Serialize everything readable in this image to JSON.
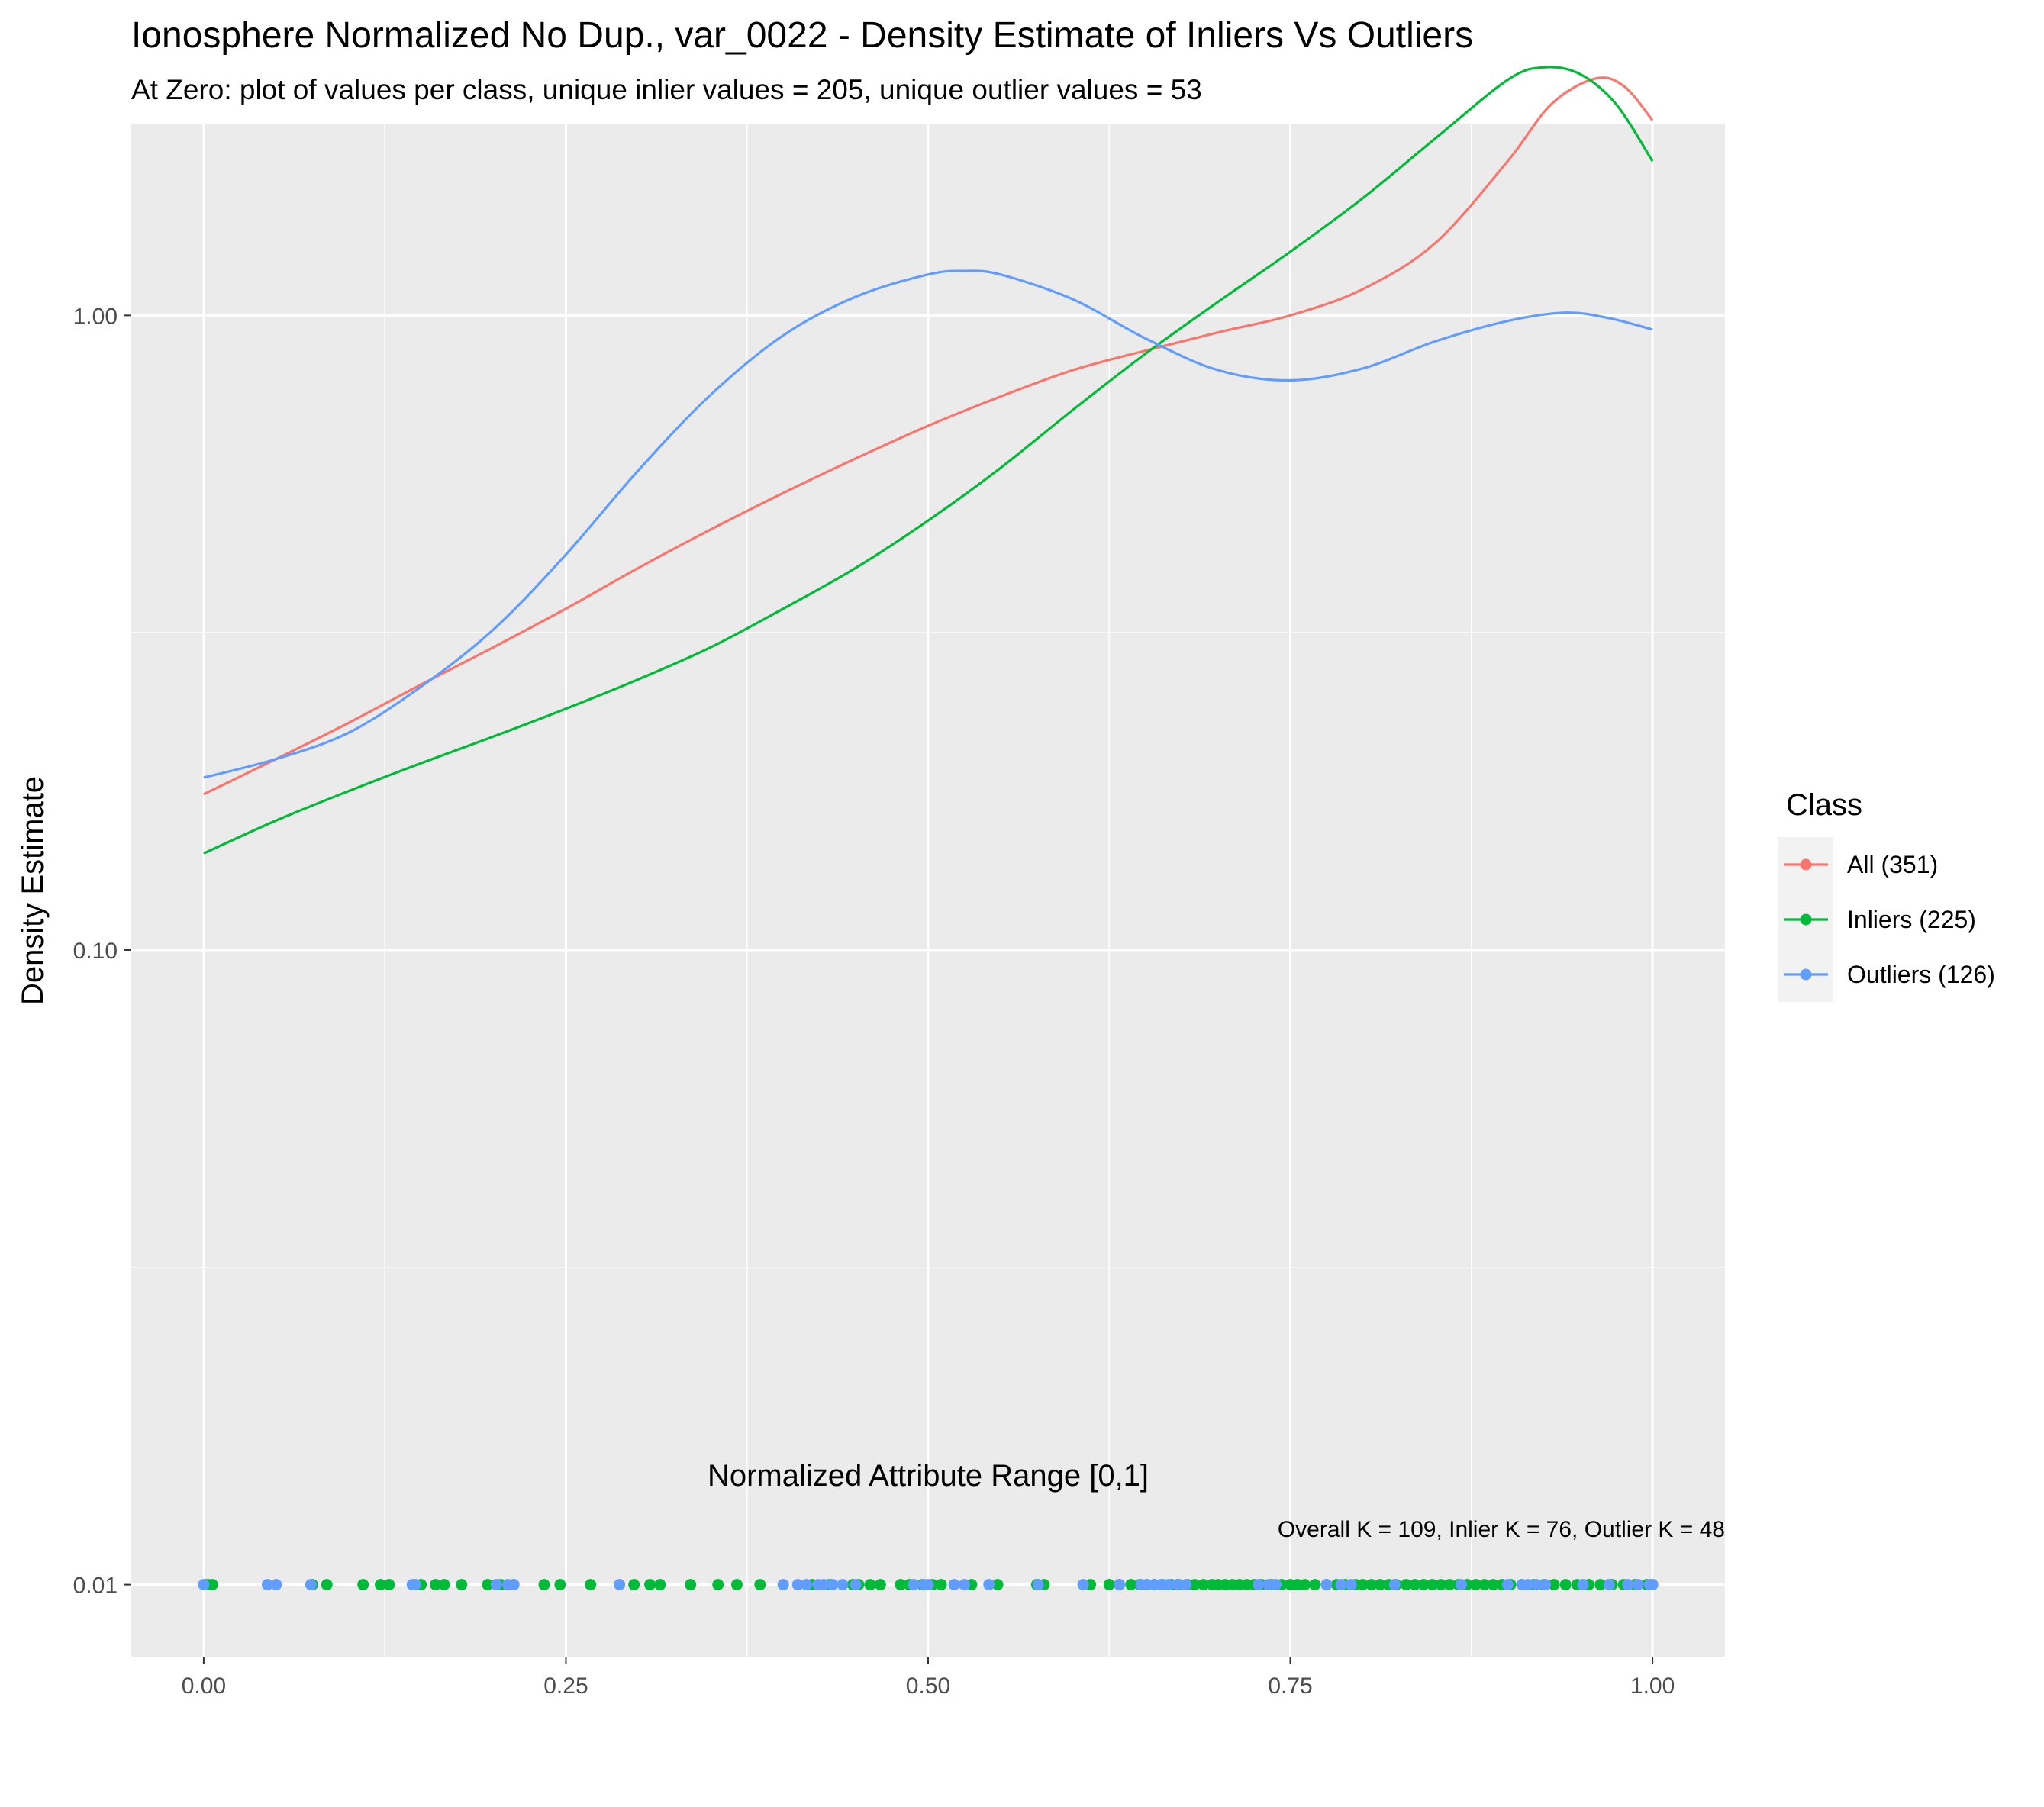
{
  "chart_data": {
    "type": "line",
    "title": "Ionosphere Normalized No Dup., var_0022 - Density Estimate of Inliers Vs Outliers",
    "subtitle": "At Zero: plot of values per class, unique inlier values = 205, unique outlier values = 53",
    "xlabel": "Normalized Attribute Range [0,1]",
    "ylabel": "Density Estimate",
    "caption": "Overall K = 109, Inlier K = 76, Outlier K = 48",
    "x_scale": "linear",
    "y_scale": "log10",
    "xlim": [
      -0.05,
      1.05
    ],
    "ylim": [
      0.0077,
      2.0
    ],
    "x_ticks": [
      0,
      0.25,
      0.5,
      0.75,
      1.0
    ],
    "x_tick_labels": [
      "0.00",
      "0.25",
      "0.50",
      "0.75",
      "1.00"
    ],
    "y_ticks": [
      0.01,
      0.1,
      1.0
    ],
    "y_tick_labels": [
      "0.01",
      "0.10",
      "1.00"
    ],
    "grid": true,
    "legend": {
      "title": "Class",
      "position": "right",
      "entries": [
        "All (351)",
        "Inliers (225)",
        "Outliers (126)"
      ]
    },
    "series": [
      {
        "name": "All (351)",
        "color": "#F8766D",
        "x": [
          0,
          0.05,
          0.1,
          0.15,
          0.2,
          0.25,
          0.3,
          0.35,
          0.4,
          0.45,
          0.5,
          0.55,
          0.6,
          0.65,
          0.7,
          0.75,
          0.8,
          0.85,
          0.9,
          0.93,
          0.96,
          0.98,
          1.0
        ],
        "y": [
          0.176,
          0.2,
          0.228,
          0.262,
          0.3,
          0.345,
          0.4,
          0.46,
          0.525,
          0.595,
          0.67,
          0.745,
          0.82,
          0.88,
          0.94,
          1.0,
          1.1,
          1.3,
          1.75,
          2.15,
          2.36,
          2.3,
          2.03
        ]
      },
      {
        "name": "Inliers (225)",
        "color": "#00BA38",
        "x": [
          0,
          0.05,
          0.1,
          0.15,
          0.2,
          0.25,
          0.3,
          0.35,
          0.4,
          0.45,
          0.5,
          0.55,
          0.6,
          0.65,
          0.7,
          0.75,
          0.8,
          0.85,
          0.9,
          0.925,
          0.95,
          0.975,
          1.0
        ],
        "y": [
          0.142,
          0.16,
          0.178,
          0.197,
          0.217,
          0.24,
          0.267,
          0.3,
          0.345,
          0.4,
          0.475,
          0.575,
          0.71,
          0.87,
          1.05,
          1.26,
          1.53,
          1.9,
          2.35,
          2.46,
          2.4,
          2.15,
          1.75
        ]
      },
      {
        "name": "Outliers (126)",
        "color": "#619CFF",
        "x": [
          0,
          0.05,
          0.1,
          0.15,
          0.2,
          0.25,
          0.3,
          0.35,
          0.4,
          0.45,
          0.5,
          0.525,
          0.55,
          0.6,
          0.65,
          0.7,
          0.75,
          0.8,
          0.85,
          0.9,
          0.94,
          0.97,
          1.0
        ],
        "y": [
          0.187,
          0.2,
          0.22,
          0.26,
          0.32,
          0.42,
          0.57,
          0.75,
          0.93,
          1.07,
          1.16,
          1.175,
          1.16,
          1.06,
          0.92,
          0.82,
          0.79,
          0.825,
          0.91,
          0.98,
          1.01,
          0.99,
          0.95
        ]
      }
    ],
    "rug_y": 0.01,
    "rug_points": [
      {
        "name": "Inliers (225)",
        "color": "#00BA38",
        "x": [
          0.001,
          0.003,
          0.006,
          0.075,
          0.085,
          0.11,
          0.122,
          0.128,
          0.15,
          0.16,
          0.166,
          0.178,
          0.196,
          0.205,
          0.214,
          0.235,
          0.246,
          0.267,
          0.297,
          0.308,
          0.315,
          0.336,
          0.355,
          0.368,
          0.384,
          0.42,
          0.432,
          0.448,
          0.452,
          0.46,
          0.467,
          0.481,
          0.487,
          0.496,
          0.503,
          0.509,
          0.53,
          0.548,
          0.575,
          0.58,
          0.612,
          0.625,
          0.632,
          0.64,
          0.646,
          0.651,
          0.656,
          0.662,
          0.668,
          0.673,
          0.679,
          0.684,
          0.69,
          0.696,
          0.7,
          0.705,
          0.71,
          0.715,
          0.72,
          0.725,
          0.73,
          0.737,
          0.744,
          0.75,
          0.755,
          0.76,
          0.767,
          0.775,
          0.782,
          0.788,
          0.795,
          0.8,
          0.806,
          0.812,
          0.818,
          0.823,
          0.83,
          0.836,
          0.842,
          0.848,
          0.854,
          0.86,
          0.866,
          0.872,
          0.878,
          0.884,
          0.89,
          0.896,
          0.902,
          0.91,
          0.918,
          0.925,
          0.932,
          0.94,
          0.948,
          0.956,
          0.964,
          0.972,
          0.98,
          0.988,
          0.996,
          1.0
        ]
      },
      {
        "name": "Outliers (126)",
        "color": "#619CFF",
        "x": [
          0.0,
          0.044,
          0.05,
          0.074,
          0.144,
          0.146,
          0.202,
          0.21,
          0.214,
          0.287,
          0.4,
          0.41,
          0.416,
          0.424,
          0.428,
          0.434,
          0.441,
          0.45,
          0.49,
          0.497,
          0.5,
          0.518,
          0.525,
          0.542,
          0.576,
          0.607,
          0.632,
          0.647,
          0.651,
          0.656,
          0.661,
          0.666,
          0.672,
          0.678,
          0.728,
          0.735,
          0.74,
          0.775,
          0.785,
          0.792,
          0.822,
          0.868,
          0.9,
          0.91,
          0.914,
          0.92,
          0.926,
          0.952,
          0.97,
          0.983,
          0.99,
          0.998,
          1.0
        ]
      }
    ]
  }
}
